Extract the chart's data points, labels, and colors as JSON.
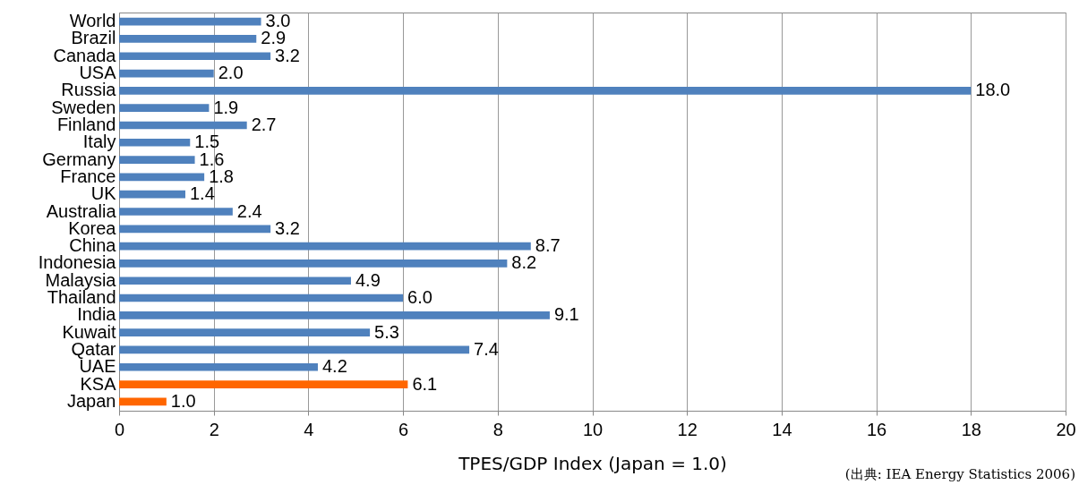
{
  "chart_data": {
    "type": "bar",
    "orientation": "horizontal",
    "categories": [
      "World",
      "Brazil",
      "Canada",
      "USA",
      "Russia",
      "Sweden",
      "Finland",
      "Italy",
      "Germany",
      "France",
      "UK",
      "Australia",
      "Korea",
      "China",
      "Indonesia",
      "Malaysia",
      "Thailand",
      "India",
      "Kuwait",
      "Qatar",
      "UAE",
      "KSA",
      "Japan"
    ],
    "values": [
      3.0,
      2.9,
      3.2,
      2.0,
      18.0,
      1.9,
      2.7,
      1.5,
      1.6,
      1.8,
      1.4,
      2.4,
      3.2,
      8.7,
      8.2,
      4.9,
      6.0,
      9.1,
      5.3,
      7.4,
      4.2,
      6.1,
      1.0
    ],
    "value_labels": [
      "3.0",
      "2.9",
      "3.2",
      "2.0",
      "18.0",
      "1.9",
      "2.7",
      "1.5",
      "1.6",
      "1.8",
      "1.4",
      "2.4",
      "3.2",
      "8.7",
      "8.2",
      "4.9",
      "6.0",
      "9.1",
      "5.3",
      "7.4",
      "4.2",
      "6.1",
      "1.0"
    ],
    "colors": [
      "#4f81bd",
      "#4f81bd",
      "#4f81bd",
      "#4f81bd",
      "#4f81bd",
      "#4f81bd",
      "#4f81bd",
      "#4f81bd",
      "#4f81bd",
      "#4f81bd",
      "#4f81bd",
      "#4f81bd",
      "#4f81bd",
      "#4f81bd",
      "#4f81bd",
      "#4f81bd",
      "#4f81bd",
      "#4f81bd",
      "#4f81bd",
      "#4f81bd",
      "#4f81bd",
      "#ff6600",
      "#ff6600"
    ],
    "xlabel": "TPES/GDP Index (Japan = 1.0)",
    "xlim": [
      0,
      20
    ],
    "xticks": [
      0,
      2,
      4,
      6,
      8,
      10,
      12,
      14,
      16,
      18,
      20
    ],
    "grid": "x",
    "annotations": [
      "(出典: IEA Energy Statistics 2006)"
    ]
  }
}
